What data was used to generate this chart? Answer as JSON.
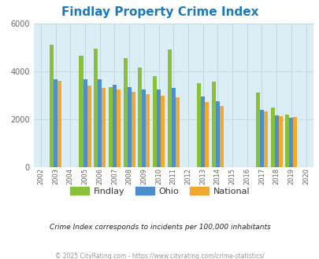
{
  "title": "Findlay Property Crime Index",
  "title_color": "#1a7abf",
  "subtitle": "Crime Index corresponds to incidents per 100,000 inhabitants",
  "footer": "© 2025 CityRating.com - https://www.cityrating.com/crime-statistics/",
  "years": [
    2003,
    2005,
    2006,
    2007,
    2008,
    2009,
    2010,
    2011,
    2013,
    2014,
    2017,
    2018,
    2019
  ],
  "findlay": [
    5100,
    4650,
    4950,
    3350,
    4550,
    4150,
    3800,
    4900,
    3500,
    3550,
    3100,
    2480,
    2180
  ],
  "ohio": [
    3650,
    3650,
    3650,
    3450,
    3350,
    3250,
    3250,
    3300,
    2950,
    2750,
    2400,
    2150,
    2050
  ],
  "national": [
    3600,
    3400,
    3300,
    3250,
    3150,
    3050,
    2980,
    2900,
    2720,
    2560,
    2330,
    2130,
    2090
  ],
  "findlay_color": "#8ac13b",
  "ohio_color": "#4d8fcc",
  "national_color": "#f0a830",
  "bg_color": "#dceef5",
  "ylim": [
    0,
    6000
  ],
  "yticks": [
    0,
    2000,
    4000,
    6000
  ],
  "all_years": [
    2002,
    2003,
    2004,
    2005,
    2006,
    2007,
    2008,
    2009,
    2010,
    2011,
    2012,
    2013,
    2014,
    2015,
    2016,
    2017,
    2018,
    2019,
    2020
  ],
  "bar_width": 0.27,
  "legend_labels": [
    "Findlay",
    "Ohio",
    "National"
  ],
  "grid_color": "#c5d8dd"
}
